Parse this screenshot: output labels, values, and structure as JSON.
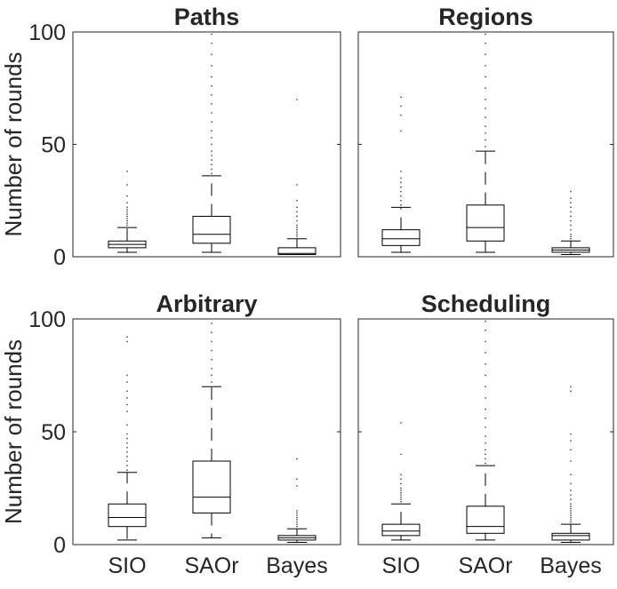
{
  "chart_data": {
    "type": "box",
    "ylabel": "Number of rounds",
    "ylim": [
      0,
      100
    ],
    "yticks": [
      "0",
      "50",
      "100"
    ],
    "categories": [
      "SIO",
      "SAOr",
      "Bayes"
    ],
    "panels": [
      {
        "title": "Paths",
        "boxes": [
          {
            "name": "SIO",
            "whislo": 2,
            "q1": 4,
            "med": 5.5,
            "q3": 7,
            "whishi": 13,
            "outliers": [
              14,
              15,
              16,
              17,
              18,
              19,
              20,
              21,
              22,
              24,
              27,
              32,
              38
            ]
          },
          {
            "name": "SAOr",
            "whislo": 2,
            "q1": 6,
            "med": 10,
            "q3": 18,
            "whishi": 36,
            "outliers": [
              37,
              39,
              41,
              43,
              45,
              47,
              50,
              53,
              56,
              60,
              64,
              68,
              72,
              76,
              80,
              85,
              90,
              95,
              99
            ]
          },
          {
            "name": "Bayes",
            "whislo": 1,
            "q1": 1,
            "med": 1.5,
            "q3": 4,
            "whishi": 8,
            "outliers": [
              9,
              10,
              11,
              12,
              13,
              14,
              16,
              18,
              20,
              22,
              25,
              32,
              70
            ]
          }
        ]
      },
      {
        "title": "Regions",
        "boxes": [
          {
            "name": "SIO",
            "whislo": 2,
            "q1": 5,
            "med": 8,
            "q3": 12,
            "whishi": 22,
            "outliers": [
              23,
              25,
              27,
              29,
              31,
              33,
              35,
              38,
              56,
              63,
              67,
              71
            ]
          },
          {
            "name": "SAOr",
            "whislo": 2,
            "q1": 7,
            "med": 13,
            "q3": 23,
            "whishi": 47,
            "outliers": [
              49,
              52,
              55,
              58,
              62,
              66,
              70,
              75,
              80,
              85,
              90,
              95,
              99
            ]
          },
          {
            "name": "Bayes",
            "whislo": 1,
            "q1": 2,
            "med": 3,
            "q3": 4,
            "whishi": 7,
            "outliers": [
              8,
              9,
              10,
              12,
              14,
              16,
              18,
              20,
              22,
              24,
              26,
              29
            ]
          }
        ]
      },
      {
        "title": "Arbitrary",
        "boxes": [
          {
            "name": "SIO",
            "whislo": 2,
            "q1": 8,
            "med": 12,
            "q3": 18,
            "whishi": 32,
            "outliers": [
              33,
              35,
              37,
              39,
              41,
              43,
              45,
              47,
              49,
              53,
              59,
              62,
              65,
              68,
              72,
              75,
              90,
              92
            ]
          },
          {
            "name": "SAOr",
            "whislo": 3,
            "q1": 14,
            "med": 21,
            "q3": 37,
            "whishi": 70,
            "outliers": [
              72,
              75,
              78,
              82,
              86,
              90,
              94,
              98
            ]
          },
          {
            "name": "Bayes",
            "whislo": 1,
            "q1": 2,
            "med": 3,
            "q3": 4,
            "whishi": 7,
            "outliers": [
              8,
              9,
              10,
              11,
              12,
              13,
              14,
              15,
              26,
              29,
              38
            ]
          }
        ]
      },
      {
        "title": "Scheduling",
        "boxes": [
          {
            "name": "SIO",
            "whislo": 2,
            "q1": 4,
            "med": 6,
            "q3": 9,
            "whishi": 18,
            "outliers": [
              19,
              20,
              21,
              22,
              23,
              24,
              25,
              27,
              29,
              31,
              40,
              54
            ]
          },
          {
            "name": "SAOr",
            "whislo": 2,
            "q1": 5,
            "med": 8,
            "q3": 17,
            "whishi": 35,
            "outliers": [
              36,
              38,
              40,
              42,
              45,
              48,
              52,
              56,
              60,
              65,
              70,
              75,
              80,
              85,
              90,
              95,
              99
            ]
          },
          {
            "name": "Bayes",
            "whislo": 1,
            "q1": 2,
            "med": 4,
            "q3": 5,
            "whishi": 9,
            "outliers": [
              10,
              11,
              12,
              13,
              14,
              15,
              16,
              17,
              18,
              20,
              22,
              24,
              27,
              31,
              37,
              42,
              46,
              49,
              68,
              70
            ]
          }
        ]
      }
    ]
  }
}
